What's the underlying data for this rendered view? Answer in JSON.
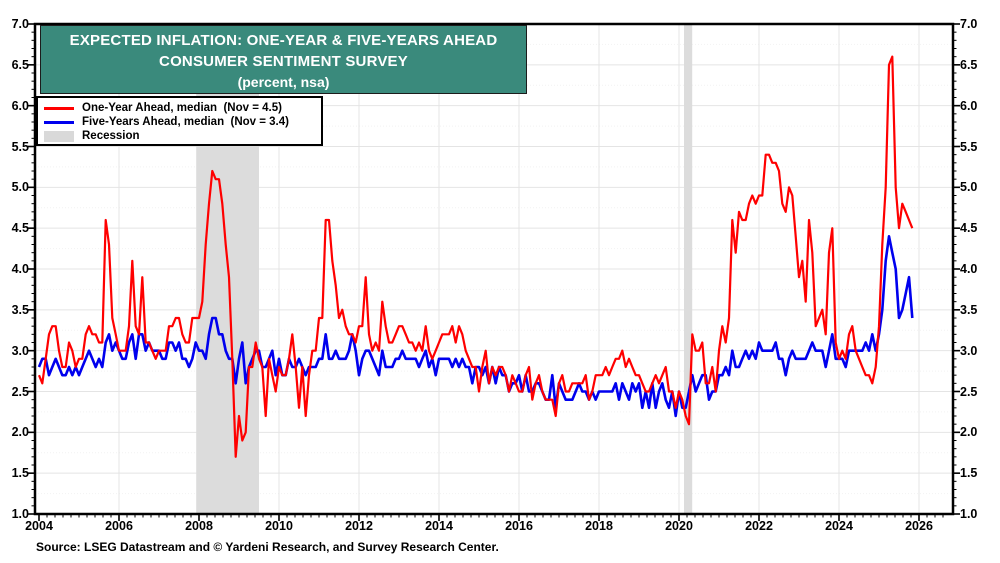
{
  "title": {
    "line1": "EXPECTED INFLATION: ONE-YEAR & FIVE-YEARS AHEAD",
    "line2": "CONSUMER SENTIMENT SURVEY",
    "line3": "(percent, nsa)"
  },
  "legend": [
    {
      "label": "One-Year Ahead, median  (Nov = 4.5)",
      "color": "#ff0000",
      "type": "line"
    },
    {
      "label": "Five-Years Ahead, median  (Nov = 3.4)",
      "color": "#0000ee",
      "type": "line"
    },
    {
      "label": "Recession",
      "color": "#d9d9d9",
      "type": "rect"
    }
  ],
  "source": "Source: LSEG Datastream and © Yardeni Research, and Survey Research Center.",
  "colors": {
    "title_bg": "#3a8a7c",
    "one_year_line": "#ff0000",
    "five_year_line": "#0000ee",
    "recession_band": "#dcdcdc",
    "gridline": "#e4e4e4",
    "minor_gridline": "#f2f2f2",
    "frame": "#000000"
  },
  "y_axis": {
    "tick_labels": [
      "7.0",
      "6.5",
      "6.0",
      "5.5",
      "5.0",
      "4.5",
      "4.0",
      "3.5",
      "3.0",
      "2.5",
      "2.0",
      "1.5",
      "1.0"
    ]
  },
  "x_axis": {
    "tick_labels": [
      "2004",
      "2006",
      "2008",
      "2010",
      "2012",
      "2014",
      "2016",
      "2018",
      "2020",
      "2022",
      "2024",
      "2026"
    ]
  },
  "chart_data": {
    "type": "line",
    "title": "EXPECTED INFLATION: ONE-YEAR & FIVE-YEARS AHEAD CONSUMER SENTIMENT SURVEY (percent, nsa)",
    "x_start_year": 2004,
    "frequency": "monthly",
    "x_end": "Nov 2025",
    "ylim": [
      1.0,
      7.0
    ],
    "y_tick_step": 0.5,
    "xlim_years": [
      2004,
      2026.85
    ],
    "grid": true,
    "legend_position": "top-left",
    "recessions": [
      {
        "start": 2007.93,
        "end": 2009.5
      },
      {
        "start": 2020.125,
        "end": 2020.33
      }
    ],
    "series": [
      {
        "name": "One-Year Ahead, median",
        "latest_label": "Nov = 4.5",
        "color": "#ff0000",
        "values": [
          2.7,
          2.6,
          2.9,
          3.2,
          3.3,
          3.3,
          3.0,
          2.8,
          2.8,
          3.1,
          3.0,
          2.8,
          2.9,
          2.9,
          3.2,
          3.3,
          3.2,
          3.2,
          3.1,
          3.1,
          4.6,
          4.3,
          3.4,
          3.2,
          3.0,
          3.0,
          3.0,
          3.3,
          4.1,
          3.3,
          3.2,
          3.9,
          3.1,
          3.1,
          3.0,
          2.9,
          3.0,
          3.0,
          3.0,
          3.3,
          3.3,
          3.4,
          3.4,
          3.2,
          3.1,
          3.1,
          3.4,
          3.4,
          3.4,
          3.6,
          4.3,
          4.8,
          5.2,
          5.1,
          5.1,
          4.8,
          4.3,
          3.9,
          2.9,
          1.7,
          2.2,
          1.9,
          2.0,
          2.8,
          2.8,
          3.1,
          2.9,
          2.8,
          2.2,
          2.9,
          2.7,
          2.5,
          2.8,
          2.7,
          2.7,
          2.9,
          3.2,
          2.8,
          2.3,
          2.8,
          2.2,
          2.7,
          3.0,
          3.0,
          3.4,
          3.4,
          4.6,
          4.6,
          4.1,
          3.8,
          3.4,
          3.5,
          3.3,
          3.2,
          3.2,
          3.1,
          3.3,
          3.3,
          3.9,
          3.2,
          3.0,
          3.1,
          3.0,
          3.6,
          3.3,
          3.1,
          3.1,
          3.2,
          3.3,
          3.3,
          3.2,
          3.1,
          3.1,
          3.0,
          3.1,
          3.0,
          3.3,
          3.0,
          2.9,
          3.0,
          3.1,
          3.2,
          3.2,
          3.2,
          3.3,
          3.1,
          3.3,
          3.2,
          3.0,
          2.9,
          2.8,
          2.8,
          2.5,
          2.8,
          3.0,
          2.6,
          2.8,
          2.7,
          2.8,
          2.8,
          2.7,
          2.5,
          2.7,
          2.6,
          2.5,
          2.5,
          2.7,
          2.8,
          2.4,
          2.6,
          2.7,
          2.5,
          2.4,
          2.4,
          2.4,
          2.2,
          2.6,
          2.7,
          2.5,
          2.5,
          2.6,
          2.6,
          2.6,
          2.6,
          2.7,
          2.4,
          2.5,
          2.7,
          2.7,
          2.7,
          2.8,
          2.7,
          2.8,
          2.9,
          2.9,
          3.0,
          2.8,
          2.9,
          2.8,
          2.7,
          2.7,
          2.6,
          2.5,
          2.5,
          2.6,
          2.7,
          2.6,
          2.7,
          2.8,
          2.5,
          2.5,
          2.3,
          2.5,
          2.4,
          2.2,
          2.1,
          3.2,
          3.0,
          3.0,
          3.1,
          2.6,
          2.6,
          2.8,
          2.5,
          3.0,
          3.3,
          3.1,
          3.4,
          4.6,
          4.2,
          4.7,
          4.6,
          4.6,
          4.8,
          4.9,
          4.8,
          4.9,
          4.9,
          5.4,
          5.4,
          5.3,
          5.3,
          5.2,
          4.8,
          4.7,
          5.0,
          4.9,
          4.4,
          3.9,
          4.1,
          3.6,
          4.6,
          4.2,
          3.3,
          3.4,
          3.5,
          3.2,
          4.2,
          4.5,
          3.1,
          2.9,
          3.0,
          2.9,
          3.2,
          3.3,
          3.0,
          2.9,
          2.8,
          2.7,
          2.7,
          2.6,
          2.8,
          3.3,
          4.3,
          5.0,
          6.5,
          6.6,
          5.0,
          4.5,
          4.8,
          4.7,
          4.6,
          4.5
        ]
      },
      {
        "name": "Five-Years Ahead, median",
        "latest_label": "Nov = 3.4",
        "color": "#0000ee",
        "values": [
          2.8,
          2.9,
          2.9,
          2.7,
          2.8,
          2.9,
          2.8,
          2.7,
          2.7,
          2.8,
          2.7,
          2.8,
          2.7,
          2.8,
          2.9,
          3.0,
          2.9,
          2.8,
          2.9,
          2.8,
          3.1,
          3.2,
          3.0,
          3.1,
          3.0,
          2.9,
          2.9,
          3.1,
          3.2,
          2.9,
          3.2,
          3.2,
          3.0,
          3.1,
          3.0,
          3.0,
          3.0,
          2.9,
          2.9,
          3.1,
          3.1,
          3.0,
          3.1,
          2.9,
          2.9,
          2.8,
          2.9,
          3.1,
          3.0,
          3.0,
          2.9,
          3.2,
          3.4,
          3.4,
          3.2,
          3.2,
          3.0,
          2.9,
          2.9,
          2.6,
          2.9,
          3.1,
          2.6,
          2.8,
          2.9,
          3.0,
          3.0,
          2.8,
          2.8,
          2.9,
          3.0,
          2.7,
          2.9,
          2.7,
          2.7,
          2.9,
          2.8,
          2.8,
          2.9,
          2.8,
          2.7,
          2.8,
          2.8,
          2.8,
          2.9,
          2.9,
          3.2,
          2.9,
          2.9,
          3.0,
          2.9,
          2.9,
          2.9,
          3.0,
          3.2,
          3.0,
          2.7,
          2.9,
          3.0,
          3.0,
          2.9,
          2.8,
          2.7,
          3.0,
          2.8,
          2.8,
          2.8,
          2.9,
          2.9,
          3.0,
          2.9,
          2.9,
          2.9,
          2.9,
          2.8,
          2.9,
          3.0,
          2.8,
          2.9,
          2.7,
          2.9,
          2.9,
          2.9,
          2.9,
          2.8,
          2.9,
          2.8,
          2.9,
          2.8,
          2.8,
          2.6,
          2.8,
          2.8,
          2.7,
          2.8,
          2.6,
          2.8,
          2.6,
          2.8,
          2.7,
          2.7,
          2.5,
          2.6,
          2.6,
          2.7,
          2.5,
          2.7,
          2.5,
          2.5,
          2.6,
          2.6,
          2.5,
          2.4,
          2.4,
          2.7,
          2.3,
          2.6,
          2.5,
          2.4,
          2.4,
          2.4,
          2.5,
          2.6,
          2.5,
          2.5,
          2.4,
          2.5,
          2.4,
          2.5,
          2.5,
          2.5,
          2.5,
          2.5,
          2.6,
          2.4,
          2.6,
          2.5,
          2.4,
          2.6,
          2.5,
          2.6,
          2.3,
          2.5,
          2.3,
          2.6,
          2.3,
          2.5,
          2.6,
          2.4,
          2.3,
          2.5,
          2.2,
          2.5,
          2.3,
          2.3,
          2.5,
          2.7,
          2.5,
          2.6,
          2.7,
          2.7,
          2.4,
          2.5,
          2.5,
          2.7,
          2.7,
          2.8,
          2.7,
          3.0,
          2.8,
          2.8,
          2.9,
          3.0,
          2.9,
          3.0,
          2.9,
          3.1,
          3.0,
          3.0,
          3.0,
          3.0,
          3.1,
          2.9,
          2.9,
          2.7,
          2.9,
          3.0,
          2.9,
          2.9,
          2.9,
          2.9,
          3.0,
          3.1,
          3.0,
          3.0,
          3.0,
          2.8,
          3.0,
          3.2,
          2.9,
          2.9,
          2.9,
          2.8,
          3.0,
          3.0,
          3.0,
          3.0,
          3.0,
          3.1,
          3.0,
          3.2,
          3.0,
          3.2,
          3.5,
          4.1,
          4.4,
          4.2,
          4.0,
          3.4,
          3.5,
          3.7,
          3.9,
          3.4
        ]
      }
    ]
  }
}
